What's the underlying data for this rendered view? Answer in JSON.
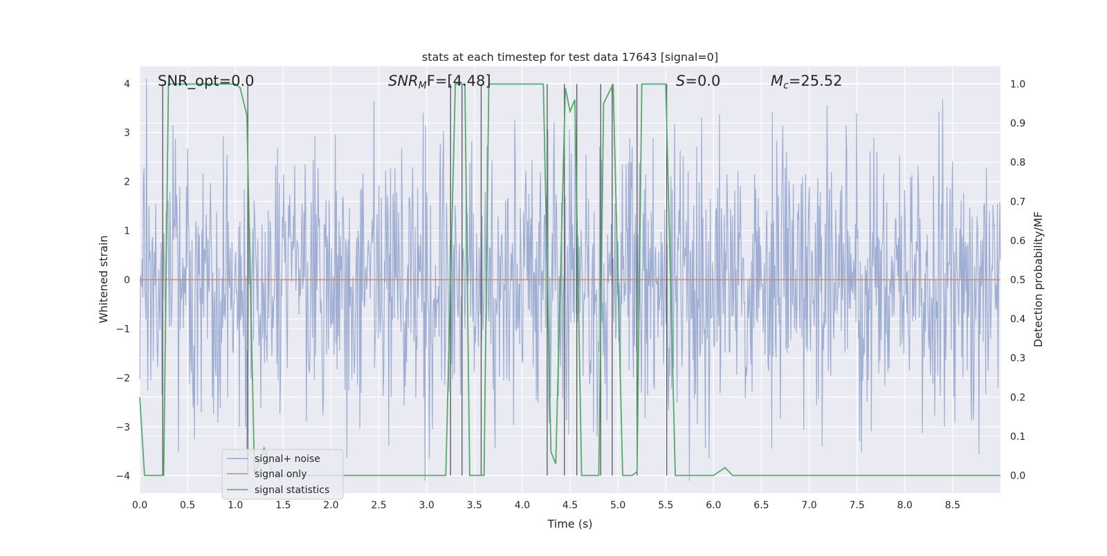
{
  "chart_data": {
    "type": "line",
    "title": "stats at each timestep for test data 17643 [signal=0]",
    "xlabel": "Time (s)",
    "ylabel": "Whitened strain",
    "ylabel_right": "Detection probability/MF",
    "xlim": [
      0.0,
      9.0
    ],
    "ylim": [
      -4.35,
      4.35
    ],
    "ylim_right": [
      -0.045,
      1.045
    ],
    "x_ticks": [
      "0.0",
      "0.5",
      "1.0",
      "1.5",
      "2.0",
      "2.5",
      "3.0",
      "3.5",
      "4.0",
      "4.5",
      "5.0",
      "5.5",
      "6.0",
      "6.5",
      "7.0",
      "7.5",
      "8.0",
      "8.5"
    ],
    "y_ticks": [
      "4",
      "3",
      "2",
      "1",
      "0",
      "−1",
      "−2",
      "−3",
      "−4"
    ],
    "y_ticks_right": [
      "1.0",
      "0.9",
      "0.8",
      "0.7",
      "0.6",
      "0.5",
      "0.4",
      "0.3",
      "0.2",
      "0.1",
      "0.0"
    ],
    "grid": true,
    "legend_position": "lower-left",
    "annotations": {
      "snr_opt": "SNR_opt=0.0",
      "snr_mf_main": "SNR",
      "snr_mf_sub": "M",
      "snr_mf_rest": "F=[4.48]",
      "s_main": "S",
      "s_rest": "=0.0",
      "mc_main": "M",
      "mc_sub": "c",
      "mc_rest": "=25.52"
    },
    "series": [
      {
        "name": "signal+ noise",
        "color": "#8fa3cc",
        "description_axis": "left",
        "noise_envelope_sigma": 1.0
      },
      {
        "name": "signal only",
        "color": "#dd8452",
        "axis": "left",
        "x": [
          0.0,
          9.0
        ],
        "y": [
          0.0,
          0.0
        ]
      },
      {
        "name": "signal statistics",
        "color": "#55a868",
        "axis": "right",
        "x": [
          0.0,
          0.05,
          0.25,
          0.3,
          0.5,
          1.0,
          1.05,
          1.12,
          1.2,
          1.3,
          1.4,
          1.6,
          3.2,
          3.3,
          3.4,
          3.45,
          3.6,
          3.65,
          4.22,
          4.3,
          4.35,
          4.45,
          4.5,
          4.55,
          4.62,
          4.7,
          4.8,
          4.85,
          4.95,
          5.05,
          5.15,
          5.2,
          5.25,
          5.5,
          5.6,
          6.0,
          6.12,
          6.2,
          6.5,
          6.95,
          7.0,
          9.0
        ],
        "y": [
          0.2,
          0.0,
          0.0,
          1.0,
          1.0,
          1.0,
          0.99,
          0.92,
          0.0,
          0.07,
          0.0,
          0.0,
          0.0,
          1.0,
          1.0,
          0.0,
          0.0,
          1.0,
          1.0,
          0.06,
          0.03,
          0.99,
          0.93,
          0.96,
          0.0,
          0.0,
          0.0,
          0.95,
          1.0,
          0.0,
          0.0,
          0.01,
          1.0,
          1.0,
          0.0,
          0.0,
          0.02,
          0.0,
          0.0,
          0.0,
          0.0,
          0.0
        ]
      }
    ],
    "vertical_markers_x": [
      0.24,
      1.13,
      3.25,
      3.37,
      3.57,
      4.26,
      4.44,
      4.57,
      4.82,
      4.94,
      5.2,
      5.51
    ]
  }
}
